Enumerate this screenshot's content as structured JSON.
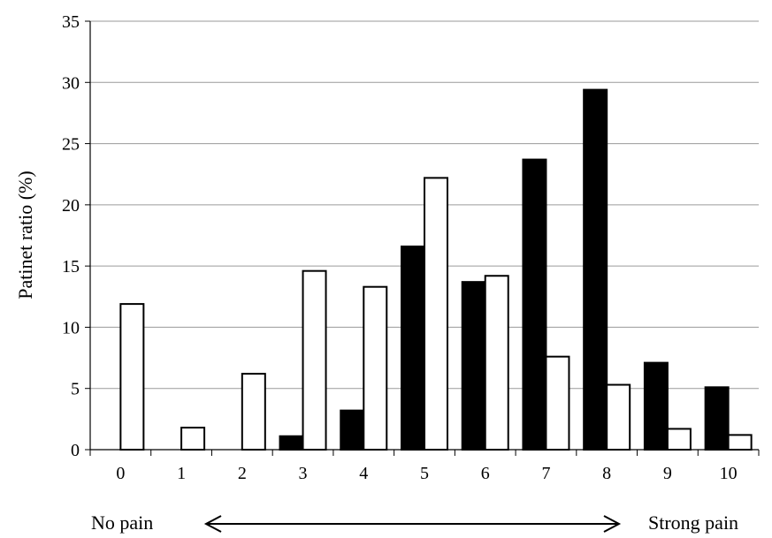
{
  "chart_data": {
    "type": "bar",
    "title": "",
    "xlabel": "",
    "ylabel": "Patinet ratio (%)",
    "ylim": [
      0,
      35
    ],
    "yticks": [
      0,
      5,
      10,
      15,
      20,
      25,
      30,
      35
    ],
    "grid": true,
    "legend": "none",
    "categories": [
      "0",
      "1",
      "2",
      "3",
      "4",
      "5",
      "6",
      "7",
      "8",
      "9",
      "10"
    ],
    "series": [
      {
        "fill": "#000000",
        "values": [
          0,
          0,
          0,
          1.1,
          3.2,
          16.6,
          13.7,
          23.7,
          29.4,
          7.1,
          5.1
        ]
      },
      {
        "fill": "#ffffff",
        "values": [
          11.9,
          1.8,
          6.2,
          14.6,
          13.3,
          22.2,
          14.2,
          7.6,
          5.3,
          1.7,
          1.2
        ]
      }
    ],
    "annotations": {
      "left": "No pain",
      "right": "Strong pain"
    }
  }
}
